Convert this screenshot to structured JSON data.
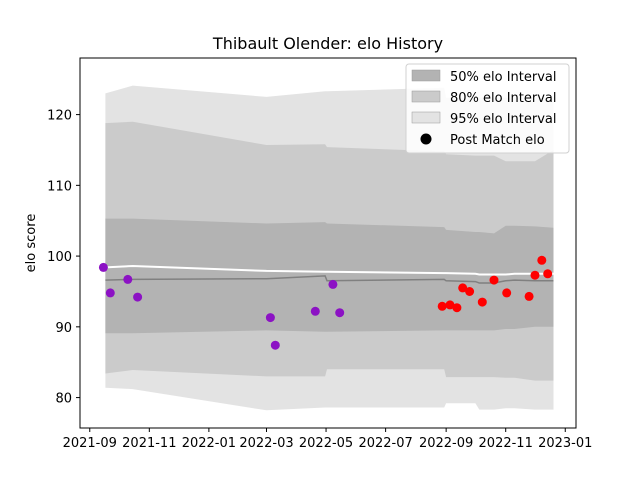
{
  "chart_data": {
    "type": "area",
    "title": "Thibault Olender: elo History",
    "xlabel": "",
    "ylabel": "elo score",
    "xlim": [
      "2021-08-22",
      "2023-01-12"
    ],
    "ylim": [
      75.7,
      128
    ],
    "x_ticks": [
      "2021-09",
      "2021-11",
      "2022-01",
      "2022-03",
      "2022-05",
      "2022-07",
      "2022-09",
      "2022-11",
      "2023-01"
    ],
    "y_ticks": [
      80,
      90,
      100,
      110,
      120
    ],
    "legend_position": "top-right",
    "colors": {
      "band95": "#e3e3e3",
      "band80": "#cbcbcb",
      "band50": "#b3b3b3",
      "median_line": "#808080",
      "mean_line": "#ffffff",
      "points_early": "#8c12c4",
      "points_late": "#ff0000"
    },
    "legend": [
      {
        "label": "50% elo Interval",
        "kind": "patch",
        "color": "#b3b3b3"
      },
      {
        "label": "80% elo Interval",
        "kind": "patch",
        "color": "#cbcbcb"
      },
      {
        "label": "95% elo Interval",
        "kind": "patch",
        "color": "#e3e3e3"
      },
      {
        "label": "Post Match elo",
        "kind": "dot",
        "color": "#000000"
      }
    ],
    "bands": {
      "dates": [
        "2021-09-17",
        "2021-10-15",
        "2022-03-01",
        "2022-04-30",
        "2022-05-02",
        "2022-08-30",
        "2022-09-01",
        "2022-10-01",
        "2022-10-05",
        "2022-10-20",
        "2022-11-01",
        "2022-11-10",
        "2022-12-01",
        "2022-12-20"
      ],
      "p95_high": [
        123.0,
        124.1,
        122.5,
        123.3,
        123.3,
        123.8,
        122.4,
        122.4,
        122.4,
        122.4,
        122.4,
        122.4,
        122.4,
        122.4
      ],
      "p80_high": [
        118.8,
        119.0,
        115.7,
        115.8,
        115.4,
        114.8,
        114.4,
        114.2,
        114.2,
        114.2,
        113.4,
        113.4,
        113.4,
        115.0
      ],
      "p50_high": [
        105.3,
        105.3,
        104.6,
        104.8,
        104.6,
        104.1,
        103.7,
        103.4,
        103.4,
        103.2,
        104.3,
        104.3,
        104.2,
        104.0
      ],
      "median": [
        96.6,
        96.7,
        96.8,
        97.2,
        96.5,
        96.7,
        96.5,
        96.4,
        96.2,
        96.2,
        96.5,
        96.6,
        96.5,
        96.5
      ],
      "mean": [
        98.4,
        98.6,
        97.9,
        97.8,
        97.8,
        97.6,
        97.6,
        97.5,
        97.4,
        97.4,
        97.4,
        97.5,
        97.5,
        97.5
      ],
      "p50_low": [
        89.1,
        89.1,
        89.5,
        89.3,
        89.3,
        89.5,
        89.5,
        89.5,
        89.5,
        89.5,
        89.7,
        89.7,
        90.0,
        90.0
      ],
      "p80_low": [
        83.4,
        83.9,
        83.0,
        83.0,
        84.0,
        84.0,
        82.9,
        82.9,
        82.9,
        82.9,
        82.8,
        82.8,
        82.4,
        82.4
      ],
      "p95_low": [
        81.4,
        81.2,
        78.2,
        78.6,
        78.6,
        78.6,
        79.2,
        79.2,
        78.3,
        78.3,
        78.5,
        78.5,
        78.3,
        78.3
      ]
    },
    "series": [
      {
        "group": "early",
        "points": [
          {
            "x": "2021-09-15",
            "y": 98.4
          },
          {
            "x": "2021-09-22",
            "y": 94.8
          },
          {
            "x": "2021-10-10",
            "y": 96.7
          },
          {
            "x": "2021-10-20",
            "y": 94.2
          },
          {
            "x": "2022-03-05",
            "y": 91.3
          },
          {
            "x": "2022-03-10",
            "y": 87.4
          },
          {
            "x": "2022-04-20",
            "y": 92.2
          },
          {
            "x": "2022-05-08",
            "y": 96.0
          },
          {
            "x": "2022-05-15",
            "y": 92.0
          }
        ]
      },
      {
        "group": "late",
        "points": [
          {
            "x": "2022-08-28",
            "y": 92.9
          },
          {
            "x": "2022-09-05",
            "y": 93.1
          },
          {
            "x": "2022-09-12",
            "y": 92.7
          },
          {
            "x": "2022-09-18",
            "y": 95.5
          },
          {
            "x": "2022-09-25",
            "y": 95.0
          },
          {
            "x": "2022-10-08",
            "y": 93.5
          },
          {
            "x": "2022-10-20",
            "y": 96.6
          },
          {
            "x": "2022-11-02",
            "y": 94.8
          },
          {
            "x": "2022-11-25",
            "y": 94.3
          },
          {
            "x": "2022-12-01",
            "y": 97.3
          },
          {
            "x": "2022-12-08",
            "y": 99.4
          },
          {
            "x": "2022-12-14",
            "y": 97.5
          }
        ]
      }
    ]
  }
}
